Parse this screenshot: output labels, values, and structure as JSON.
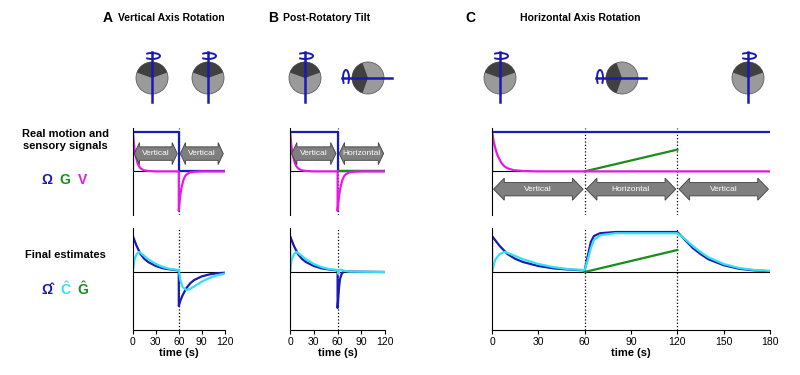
{
  "panels": [
    {
      "letter": "A",
      "title": "Vertical Axis Rotation"
    },
    {
      "letter": "B",
      "title": "Post-Rotatory Tilt"
    },
    {
      "letter": "C",
      "title": "Horizontal Axis Rotation"
    }
  ],
  "rows": [
    {
      "label": "Real motion and sensory signals",
      "legend": [
        "Ω",
        "G",
        "V"
      ]
    },
    {
      "label": "Final estimates",
      "legend": [
        "Ω̂",
        "Ĉ",
        "Ĝ"
      ]
    }
  ],
  "chart_data": [
    {
      "type": "line",
      "xlim": [
        0,
        120
      ],
      "ylim": [
        -1.1,
        1.1
      ],
      "tick_labels": false,
      "vlines": [
        60
      ],
      "annotations": [
        {
          "text": "Vertical",
          "x": [
            2,
            58
          ],
          "y": 0.45
        },
        {
          "text": "Vertical",
          "x": [
            62,
            118
          ],
          "y": 0.45
        }
      ],
      "series": [
        {
          "name": "Ω",
          "color": "#1a1ab4",
          "x": [
            0,
            0,
            60,
            60,
            120
          ],
          "values": [
            0,
            1,
            1,
            0,
            0
          ]
        },
        {
          "name": "V",
          "color": "#e619e6",
          "x": [
            0,
            0,
            1,
            2,
            3,
            4,
            6,
            8,
            10,
            14,
            20,
            30,
            60,
            60,
            61,
            62,
            63,
            64,
            66,
            68,
            70,
            74,
            80,
            90,
            120
          ],
          "values": [
            0,
            1,
            0.78,
            0.6,
            0.47,
            0.37,
            0.22,
            0.13,
            0.08,
            0.03,
            0.01,
            0,
            0,
            -1,
            -0.78,
            -0.6,
            -0.47,
            -0.37,
            -0.22,
            -0.13,
            -0.08,
            -0.03,
            -0.01,
            0,
            0
          ]
        }
      ]
    },
    {
      "type": "line",
      "xlim": [
        0,
        120
      ],
      "ylim": [
        -1.1,
        1.1
      ],
      "tick_labels": false,
      "vlines": [
        60
      ],
      "annotations": [
        {
          "text": "Vertical",
          "x": [
            2,
            58
          ],
          "y": 0.45
        },
        {
          "text": "Horizontal",
          "x": [
            62,
            118
          ],
          "y": 0.45
        }
      ],
      "series": [
        {
          "name": "Ω",
          "color": "#1a1ab4",
          "x": [
            0,
            0,
            60,
            60,
            120
          ],
          "values": [
            0,
            1,
            1,
            0,
            0
          ]
        },
        {
          "name": "G",
          "color": "#1a8c1a",
          "x": [
            60,
            120
          ],
          "values": [
            0,
            0
          ]
        },
        {
          "name": "V",
          "color": "#e619e6",
          "x": [
            0,
            0,
            1,
            2,
            3,
            4,
            6,
            8,
            10,
            14,
            20,
            30,
            60,
            60,
            61,
            62,
            63,
            64,
            66,
            68,
            70,
            74,
            80,
            90,
            120
          ],
          "values": [
            0,
            1,
            0.78,
            0.6,
            0.47,
            0.37,
            0.22,
            0.13,
            0.08,
            0.03,
            0.01,
            0,
            0,
            -1,
            -0.78,
            -0.6,
            -0.47,
            -0.37,
            -0.22,
            -0.13,
            -0.08,
            -0.03,
            -0.01,
            0,
            0
          ]
        }
      ]
    },
    {
      "type": "line",
      "xlim": [
        0,
        180
      ],
      "ylim": [
        -1.1,
        1.1
      ],
      "tick_labels": false,
      "vlines": [
        60,
        120
      ],
      "annotations": [
        {
          "text": "Vertical",
          "x": [
            1,
            59
          ],
          "y": -0.45
        },
        {
          "text": "Horizontal",
          "x": [
            61,
            119
          ],
          "y": -0.45
        },
        {
          "text": "Vertical",
          "x": [
            121,
            179
          ],
          "y": -0.45
        }
      ],
      "series": [
        {
          "name": "Ω",
          "color": "#1a1ab4",
          "x": [
            0,
            0,
            180
          ],
          "values": [
            0,
            1,
            1
          ]
        },
        {
          "name": "G",
          "color": "#1a8c1a",
          "x": [
            60,
            120
          ],
          "values": [
            0,
            0.55
          ]
        },
        {
          "name": "V",
          "color": "#e619e6",
          "x": [
            0,
            0,
            1,
            2,
            3,
            4,
            6,
            8,
            10,
            14,
            20,
            30,
            180
          ],
          "values": [
            0,
            1,
            0.78,
            0.6,
            0.47,
            0.37,
            0.22,
            0.13,
            0.08,
            0.03,
            0.01,
            0,
            0
          ]
        }
      ]
    },
    {
      "type": "line",
      "xlabel": "time (s)",
      "xlim": [
        0,
        120
      ],
      "xticks": [
        0,
        30,
        60,
        90,
        120
      ],
      "ylim": [
        -1.45,
        1.1
      ],
      "tick_labels": "x",
      "vlines": [
        60
      ],
      "series": [
        {
          "name": "Ω̂",
          "color": "#1a1ab4",
          "x": [
            0,
            0,
            2,
            5,
            10,
            15,
            20,
            30,
            40,
            50,
            60,
            60,
            62,
            65,
            70,
            75,
            80,
            90,
            100,
            110,
            120
          ],
          "values": [
            0,
            0.9,
            0.8,
            0.65,
            0.45,
            0.33,
            0.25,
            0.15,
            0.09,
            0.06,
            0.04,
            -0.85,
            -0.72,
            -0.58,
            -0.4,
            -0.28,
            -0.2,
            -0.11,
            -0.06,
            -0.03,
            -0.02
          ]
        },
        {
          "name": "Ĉ",
          "color": "#33e0f0",
          "x": [
            0,
            2,
            5,
            8,
            10,
            15,
            20,
            30,
            40,
            50,
            60,
            62,
            65,
            70,
            75,
            80,
            90,
            100,
            110,
            120
          ],
          "values": [
            0,
            0.3,
            0.45,
            0.5,
            0.48,
            0.4,
            0.32,
            0.2,
            0.12,
            0.07,
            0.05,
            -0.2,
            -0.38,
            -0.45,
            -0.42,
            -0.36,
            -0.24,
            -0.15,
            -0.08,
            -0.04
          ]
        }
      ]
    },
    {
      "type": "line",
      "xlabel": "time (s)",
      "xlim": [
        0,
        120
      ],
      "xticks": [
        0,
        30,
        60,
        90,
        120
      ],
      "ylim": [
        -1.45,
        1.1
      ],
      "tick_labels": "x",
      "vlines": [
        60
      ],
      "series": [
        {
          "name": "Ω̂",
          "color": "#1a1ab4",
          "x": [
            0,
            0,
            2,
            5,
            10,
            15,
            20,
            30,
            40,
            50,
            60,
            60,
            61,
            62,
            63,
            65,
            68,
            75,
            120
          ],
          "values": [
            0,
            0.9,
            0.8,
            0.65,
            0.45,
            0.33,
            0.25,
            0.15,
            0.09,
            0.06,
            0.04,
            -0.9,
            -0.6,
            -0.35,
            -0.18,
            -0.05,
            0.02,
            0.01,
            0
          ]
        },
        {
          "name": "Ĉ",
          "color": "#33e0f0",
          "x": [
            0,
            2,
            5,
            8,
            10,
            15,
            20,
            30,
            40,
            50,
            60,
            61,
            62,
            64,
            68,
            75,
            120
          ],
          "values": [
            0,
            0.3,
            0.45,
            0.5,
            0.48,
            0.4,
            0.32,
            0.2,
            0.12,
            0.07,
            0.05,
            -0.05,
            0.05,
            0.06,
            0.03,
            0.01,
            0
          ]
        }
      ]
    },
    {
      "type": "line",
      "xlabel": "time (s)",
      "xlim": [
        0,
        180
      ],
      "xticks": [
        0,
        30,
        60,
        90,
        120,
        150,
        180
      ],
      "ylim": [
        -1.45,
        1.1
      ],
      "tick_labels": "x",
      "vlines": [
        60,
        120
      ],
      "series": [
        {
          "name": "Ω̂",
          "color": "#1a1ab4",
          "x": [
            0,
            0,
            2,
            5,
            10,
            15,
            20,
            30,
            40,
            50,
            60,
            62,
            64,
            66,
            70,
            80,
            120,
            125,
            130,
            135,
            140,
            150,
            160,
            170,
            180
          ],
          "values": [
            0,
            0.9,
            0.8,
            0.65,
            0.45,
            0.33,
            0.25,
            0.15,
            0.09,
            0.06,
            0.04,
            0.4,
            0.75,
            0.9,
            0.97,
            1.0,
            1.0,
            0.8,
            0.6,
            0.45,
            0.32,
            0.17,
            0.08,
            0.04,
            0.02
          ]
        },
        {
          "name": "Ĉ",
          "color": "#33e0f0",
          "x": [
            0,
            2,
            5,
            8,
            10,
            15,
            20,
            30,
            40,
            50,
            60,
            62,
            64,
            66,
            70,
            80,
            120,
            125,
            130,
            135,
            140,
            150,
            160,
            170,
            180
          ],
          "values": [
            0,
            0.3,
            0.45,
            0.5,
            0.48,
            0.4,
            0.32,
            0.2,
            0.12,
            0.07,
            0.05,
            0.3,
            0.6,
            0.8,
            0.92,
            0.97,
            0.97,
            0.82,
            0.65,
            0.5,
            0.37,
            0.2,
            0.1,
            0.05,
            0.03
          ]
        },
        {
          "name": "Ĝ",
          "color": "#1a8c1a",
          "x": [
            60,
            120
          ],
          "values": [
            0,
            0.55
          ]
        }
      ]
    }
  ]
}
